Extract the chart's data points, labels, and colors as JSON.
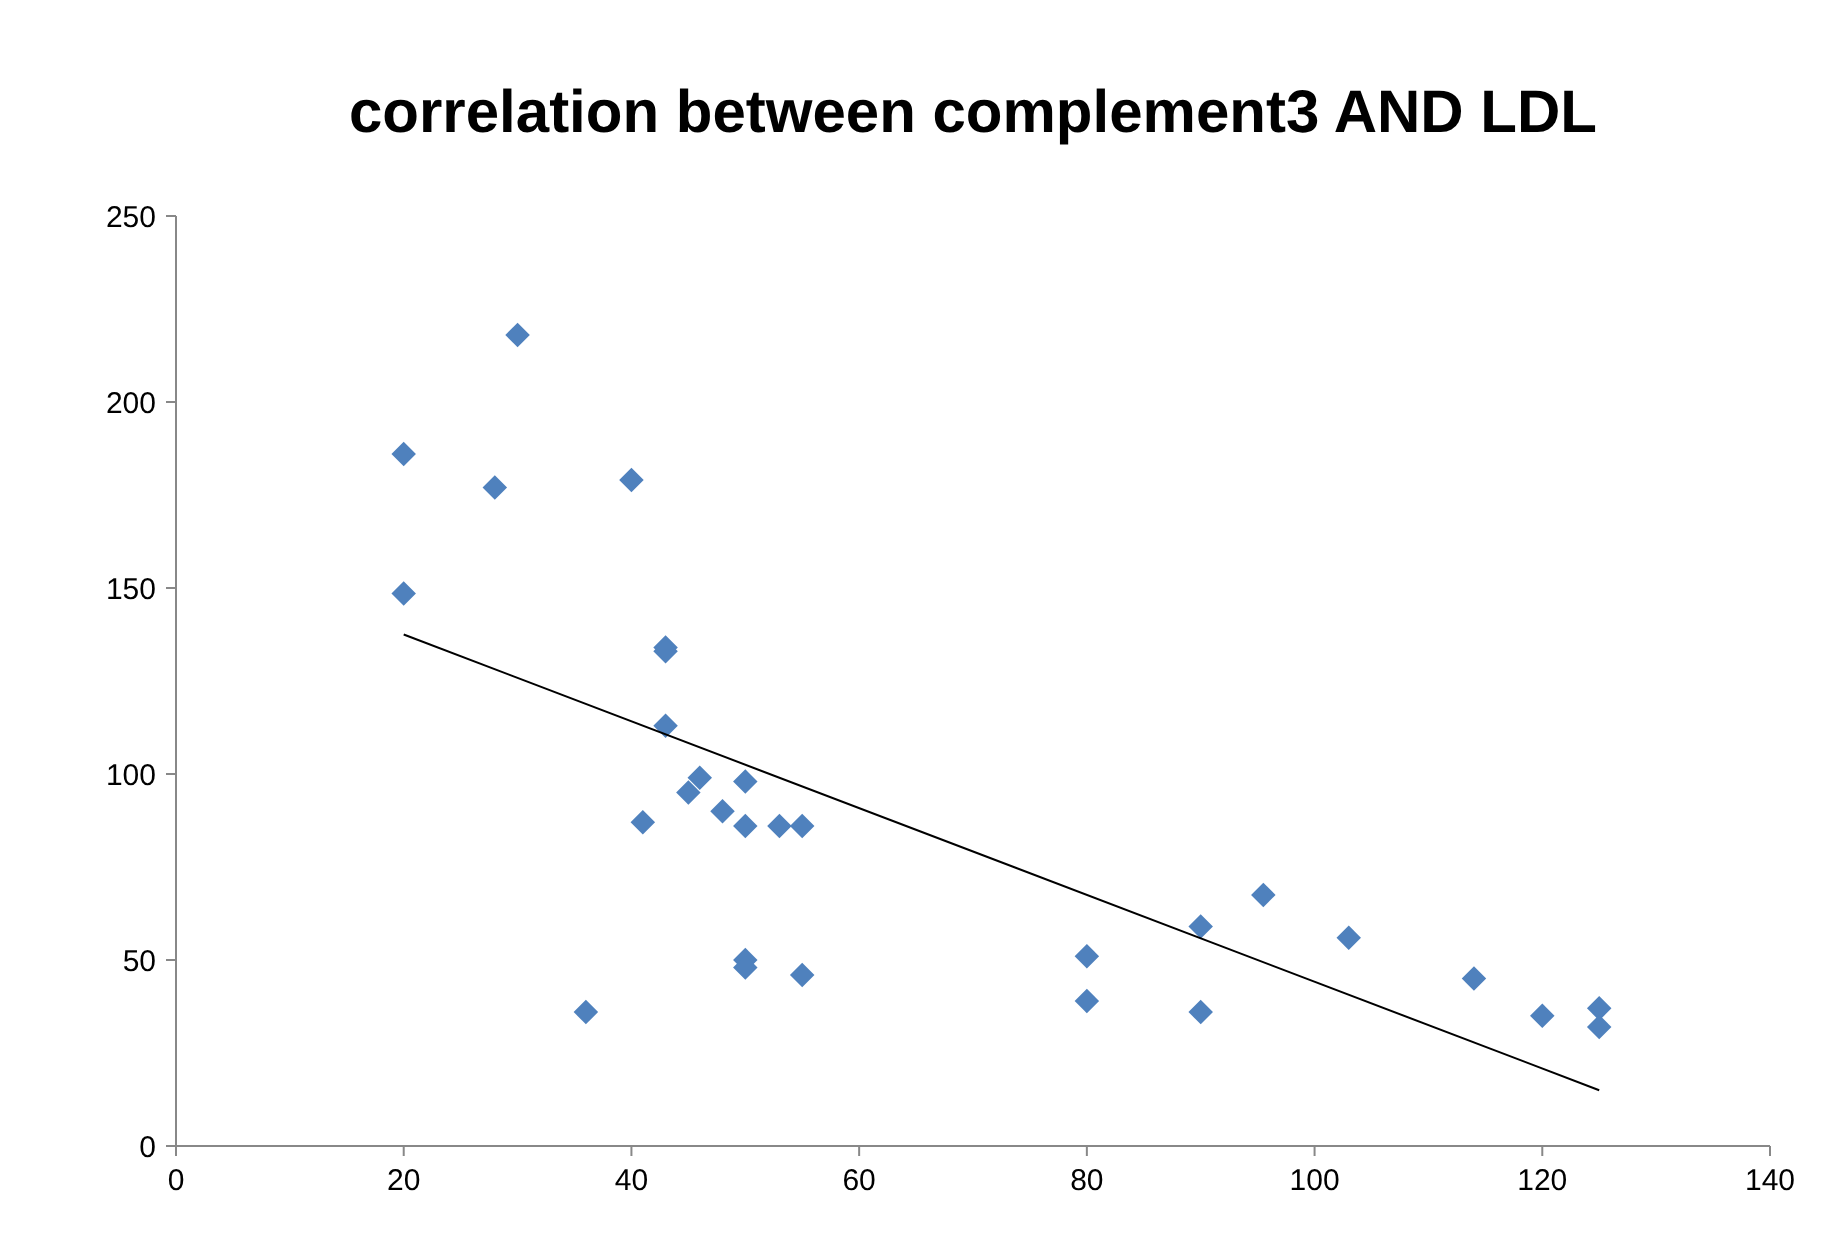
{
  "chart_data": {
    "type": "scatter",
    "title": "correlation between complement3 AND LDL",
    "grid": false,
    "xlim": [
      0,
      140
    ],
    "xticks": [
      0,
      20,
      40,
      60,
      80,
      100,
      120,
      140
    ],
    "ylim": [
      0,
      250
    ],
    "yticks": [
      0,
      50,
      100,
      150,
      200,
      250
    ],
    "series": [
      {
        "marker": "diamond",
        "color": "#4f81bd",
        "x": [
          20,
          20,
          28,
          30,
          40,
          36,
          43,
          43,
          43,
          41,
          45,
          46,
          48,
          50,
          50,
          53,
          55,
          50,
          50,
          55,
          80,
          80,
          90,
          90,
          95.5,
          103,
          114,
          120,
          125,
          125
        ],
        "values": [
          186,
          148.5,
          177,
          218,
          179,
          36,
          134,
          133,
          113,
          87,
          95,
          99,
          90,
          98,
          86,
          86,
          86,
          50,
          48,
          46,
          51,
          39,
          59,
          36,
          67.5,
          56,
          45,
          35,
          37,
          32
        ]
      },
      {
        "type": "line",
        "color": "#000000",
        "x": [
          20,
          125
        ],
        "values": [
          137.5,
          15
        ]
      }
    ]
  }
}
